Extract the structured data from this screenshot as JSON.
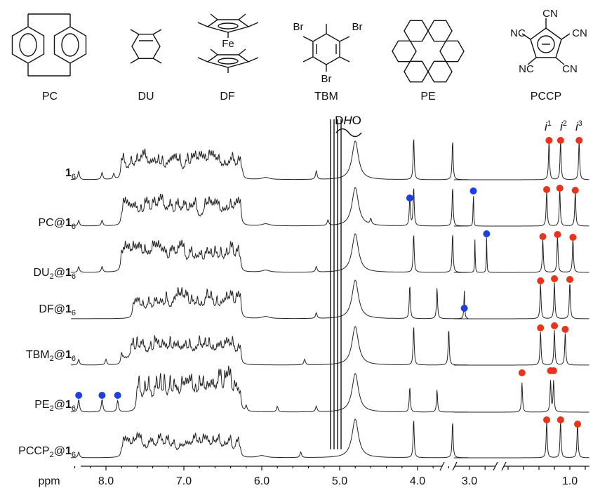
{
  "structures": [
    {
      "abbr": "PC",
      "atoms": []
    },
    {
      "abbr": "DU",
      "atoms": []
    },
    {
      "abbr": "DF",
      "atoms": [
        "Fe"
      ]
    },
    {
      "abbr": "TBM",
      "atoms": [
        "Br",
        "Br",
        "Br"
      ]
    },
    {
      "abbr": "PE",
      "atoms": []
    },
    {
      "abbr": "PCCP",
      "atoms": [
        "CN",
        "NC",
        "CN",
        "NC",
        "CN"
      ],
      "charge": "−"
    }
  ],
  "solvent_label": {
    "prefix": "D",
    "italic": "H",
    "suffix": "O"
  },
  "peak_labels": [
    {
      "italic": "i",
      "sup": "1"
    },
    {
      "italic": "i",
      "sup": "2"
    },
    {
      "italic": "i",
      "sup": "3"
    }
  ],
  "trace_labels": [
    {
      "pre": "",
      "bold": "1",
      "sub": "6"
    },
    {
      "pre": "PC@",
      "bold": "1",
      "sub": "6"
    },
    {
      "pre": "DU",
      "pre_sub": "2",
      "at": "@",
      "bold": "1",
      "sub": "6"
    },
    {
      "pre": "DF@",
      "bold": "1",
      "sub": "6"
    },
    {
      "pre": "TBM",
      "pre_sub": "2",
      "at": "@",
      "bold": "1",
      "sub": "6"
    },
    {
      "pre": "PE",
      "pre_sub": "2",
      "at": "@",
      "bold": "1",
      "sub": "6"
    },
    {
      "pre": "PCCP",
      "pre_sub": "2",
      "at": "@",
      "bold": "1",
      "sub": "6"
    }
  ],
  "axis": {
    "unit": "ppm",
    "ticks": [
      "8.0",
      "7.0",
      "6.0",
      "5.0",
      "4.0",
      "3.0",
      "1.0"
    ]
  },
  "colors": {
    "trace": "#222222",
    "guest_marker": "#1f3fe0",
    "host_marker": "#e8341c"
  }
}
